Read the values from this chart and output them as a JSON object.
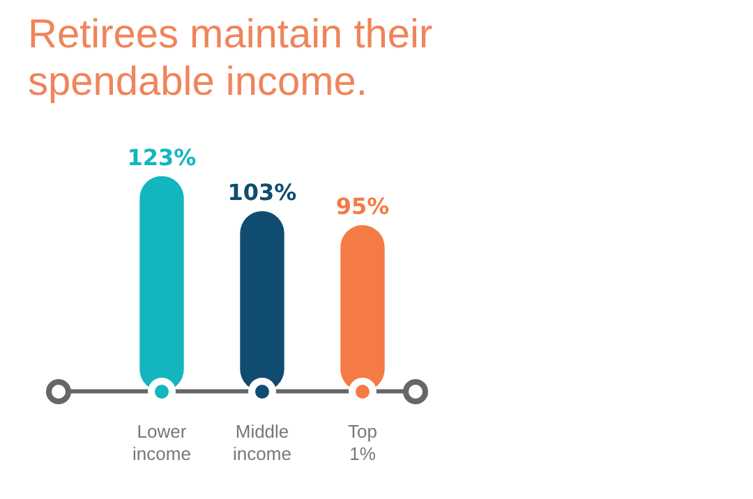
{
  "chart_data": {
    "type": "bar",
    "title": "Retirees maintain their spendable income.",
    "categories": [
      "Lower income",
      "Middle income",
      "Top 1%"
    ],
    "values": [
      123,
      103,
      95
    ],
    "colors": [
      "#13b5bf",
      "#0f4c70",
      "#f47a46"
    ],
    "value_labels": [
      "123%",
      "103%",
      "95%"
    ]
  }
}
